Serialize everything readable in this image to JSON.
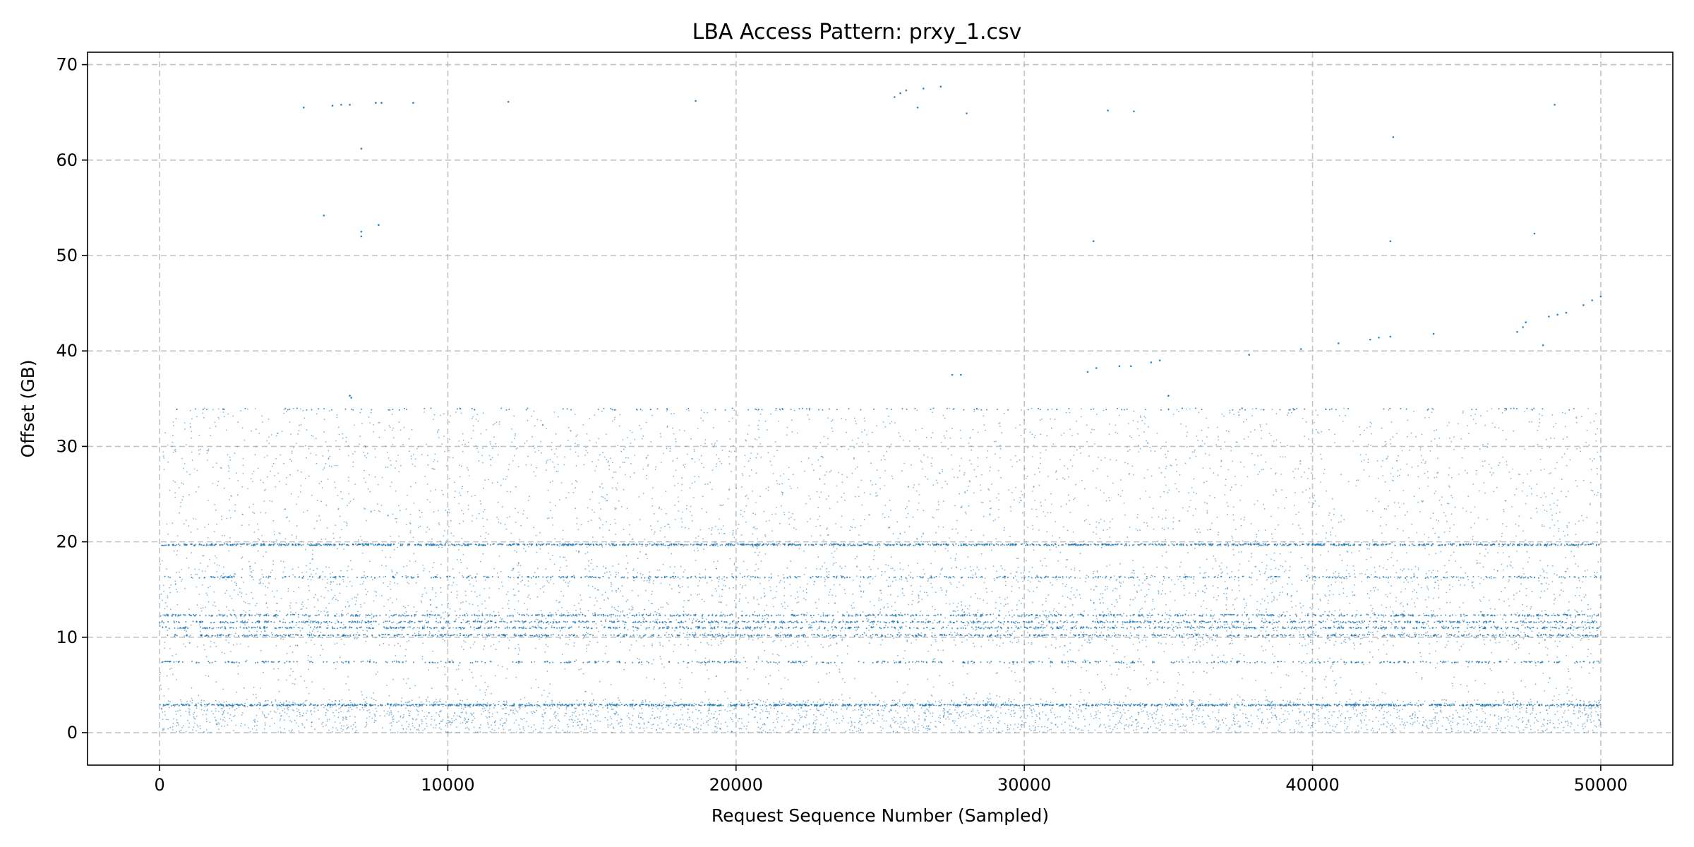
{
  "chart_data": {
    "type": "scatter",
    "title": "LBA Access Pattern: prxy_1.csv",
    "xlabel": "Request Sequence Number (Sampled)",
    "ylabel": "Offset (GB)",
    "xlim": [
      -2500,
      52500
    ],
    "ylim": [
      -3.4,
      71.3
    ],
    "xticks": [
      0,
      10000,
      20000,
      30000,
      40000,
      50000
    ],
    "xtick_labels": [
      "0",
      "10000",
      "20000",
      "30000",
      "40000",
      "50000"
    ],
    "yticks": [
      0,
      10,
      20,
      30,
      40,
      50,
      60,
      70
    ],
    "ytick_labels": [
      "0",
      "10",
      "20",
      "30",
      "40",
      "50",
      "60",
      "70"
    ],
    "grid": true,
    "color": "#1f77b4",
    "x_range": [
      0,
      50000
    ],
    "bands": [
      {
        "y": 2.9,
        "density": "very high"
      },
      {
        "y": 10.2,
        "density": "high"
      },
      {
        "y": 11.0,
        "density": "high"
      },
      {
        "y": 11.6,
        "density": "high"
      },
      {
        "y": 12.3,
        "density": "high"
      },
      {
        "y": 16.3,
        "density": "medium"
      },
      {
        "y": 19.7,
        "density": "very high"
      },
      {
        "y": 7.4,
        "density": "medium"
      },
      {
        "y": 33.9,
        "density": "low"
      }
    ],
    "dense_regions": [
      {
        "y_range": [
          0,
          3.5
        ],
        "density": "high"
      },
      {
        "y_range": [
          3.5,
          9
        ],
        "density": "low"
      },
      {
        "y_range": [
          9,
          17.5
        ],
        "density": "high"
      },
      {
        "y_range": [
          17.5,
          21
        ],
        "density": "low"
      },
      {
        "y_range": [
          21,
          34
        ],
        "density": "medium"
      }
    ],
    "outliers": [
      {
        "x": 5000,
        "y": 65.5
      },
      {
        "x": 6000,
        "y": 65.7
      },
      {
        "x": 6300,
        "y": 65.8
      },
      {
        "x": 6600,
        "y": 65.8
      },
      {
        "x": 7500,
        "y": 66.0
      },
      {
        "x": 7700,
        "y": 66.0
      },
      {
        "x": 8800,
        "y": 66.0
      },
      {
        "x": 12100,
        "y": 66.1
      },
      {
        "x": 18600,
        "y": 66.2
      },
      {
        "x": 5700,
        "y": 54.2
      },
      {
        "x": 7000,
        "y": 61.2
      },
      {
        "x": 7000,
        "y": 52.5
      },
      {
        "x": 7000,
        "y": 52.0
      },
      {
        "x": 7600,
        "y": 53.2
      },
      {
        "x": 6600,
        "y": 35.3
      },
      {
        "x": 6650,
        "y": 35.1
      },
      {
        "x": 25500,
        "y": 66.6
      },
      {
        "x": 25700,
        "y": 67.0
      },
      {
        "x": 25900,
        "y": 67.3
      },
      {
        "x": 26500,
        "y": 67.5
      },
      {
        "x": 27100,
        "y": 67.7
      },
      {
        "x": 26300,
        "y": 65.5
      },
      {
        "x": 28000,
        "y": 64.9
      },
      {
        "x": 27500,
        "y": 37.5
      },
      {
        "x": 27800,
        "y": 37.5
      },
      {
        "x": 32400,
        "y": 51.5
      },
      {
        "x": 32900,
        "y": 65.2
      },
      {
        "x": 33800,
        "y": 65.1
      },
      {
        "x": 32200,
        "y": 37.8
      },
      {
        "x": 32500,
        "y": 38.2
      },
      {
        "x": 33300,
        "y": 38.4
      },
      {
        "x": 33700,
        "y": 38.4
      },
      {
        "x": 34400,
        "y": 38.8
      },
      {
        "x": 34700,
        "y": 39.0
      },
      {
        "x": 35000,
        "y": 35.3
      },
      {
        "x": 37800,
        "y": 39.6
      },
      {
        "x": 39600,
        "y": 40.2
      },
      {
        "x": 40900,
        "y": 40.8
      },
      {
        "x": 42000,
        "y": 41.2
      },
      {
        "x": 42300,
        "y": 41.4
      },
      {
        "x": 42700,
        "y": 41.5
      },
      {
        "x": 42800,
        "y": 62.4
      },
      {
        "x": 42700,
        "y": 51.5
      },
      {
        "x": 44200,
        "y": 41.8
      },
      {
        "x": 47100,
        "y": 42.0
      },
      {
        "x": 47300,
        "y": 42.5
      },
      {
        "x": 47400,
        "y": 43.0
      },
      {
        "x": 48000,
        "y": 40.6
      },
      {
        "x": 48200,
        "y": 43.6
      },
      {
        "x": 48500,
        "y": 43.8
      },
      {
        "x": 48800,
        "y": 44.0
      },
      {
        "x": 49400,
        "y": 44.8
      },
      {
        "x": 49700,
        "y": 45.3
      },
      {
        "x": 50000,
        "y": 45.7
      },
      {
        "x": 47700,
        "y": 52.3
      },
      {
        "x": 48400,
        "y": 65.8
      }
    ]
  }
}
